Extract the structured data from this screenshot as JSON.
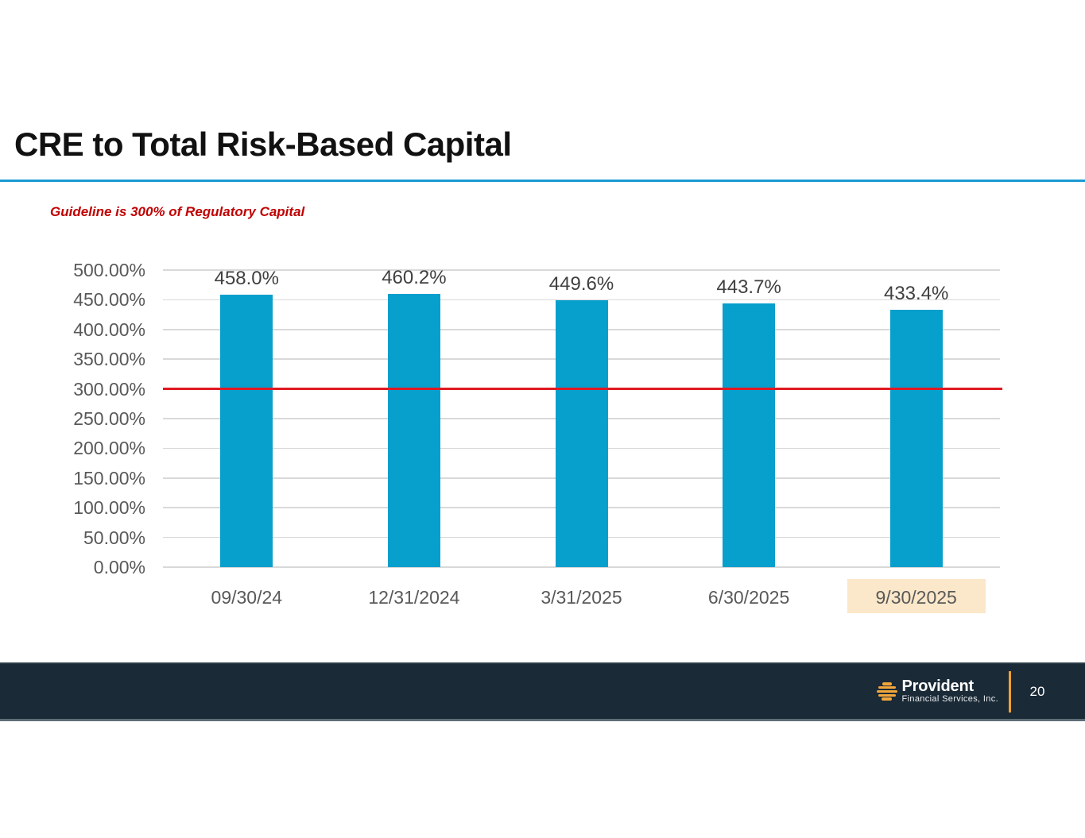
{
  "slide": {
    "title": "CRE to Total Risk-Based Capital",
    "subtitle": "Guideline is 300% of Regulatory Capital"
  },
  "footer": {
    "brand_name": "Provident",
    "brand_subtitle": "Financial Services, Inc.",
    "page_number": "20",
    "background_color": "#1b2a37",
    "accent_gold": "#f0a132"
  },
  "chart_data": {
    "type": "bar",
    "title": "CRE to Total Risk-Based Capital",
    "categories": [
      "09/30/24",
      "12/31/2024",
      "3/31/2025",
      "6/30/2025",
      "9/30/2025"
    ],
    "values": [
      458.0,
      460.2,
      449.6,
      443.7,
      433.4
    ],
    "data_labels": [
      "458.0%",
      "460.2%",
      "449.6%",
      "443.7%",
      "433.4%"
    ],
    "y_ticks": [
      "500.00%",
      "450.00%",
      "400.00%",
      "350.00%",
      "300.00%",
      "250.00%",
      "200.00%",
      "150.00%",
      "100.00%",
      "50.00%",
      "0.00%"
    ],
    "y_tick_values": [
      500,
      450,
      400,
      350,
      300,
      250,
      200,
      150,
      100,
      50,
      0
    ],
    "ylim": [
      0,
      500
    ],
    "xlabel": "",
    "ylabel": "",
    "legend": "none",
    "grid": "horizontal",
    "guideline_value": 300,
    "guideline_label": "Guideline is 300% of Regulatory Capital",
    "guideline_color": "#e01a22",
    "bar_color": "#079fcc",
    "gridline_color": "#d9d9d9",
    "tick_label_color": "#595959",
    "data_label_color": "#404040",
    "highlighted_category_index": 4,
    "highlight_color": "#fbe7c9"
  }
}
